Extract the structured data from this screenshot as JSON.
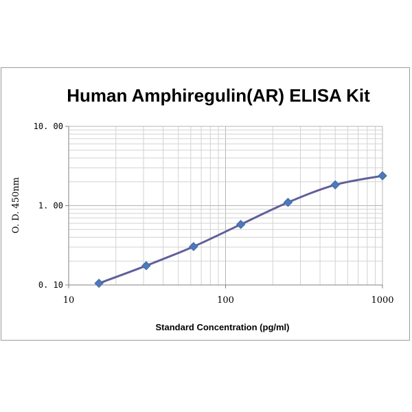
{
  "chart_data": {
    "type": "scatter",
    "title": "Human Amphiregulin(AR) ELISA Kit",
    "xlabel": "Standard Concentration (pg/ml)",
    "ylabel": "O. D.  450nm",
    "x_scale": "log",
    "y_scale": "log",
    "xlim": [
      10,
      1000
    ],
    "ylim": [
      0.1,
      10
    ],
    "x_ticks": [
      "10",
      "100",
      "1000"
    ],
    "y_ticks": [
      "0. 10",
      "1. 00",
      "10. 00"
    ],
    "grid": true,
    "legend": "none",
    "series": [
      {
        "color": "#5f5f9a",
        "marker_color": "#4f78b8",
        "x": [
          15.6,
          31.2,
          62.5,
          125,
          250,
          500,
          1000
        ],
        "y": [
          0.105,
          0.175,
          0.305,
          0.58,
          1.1,
          1.83,
          2.38
        ]
      }
    ]
  }
}
